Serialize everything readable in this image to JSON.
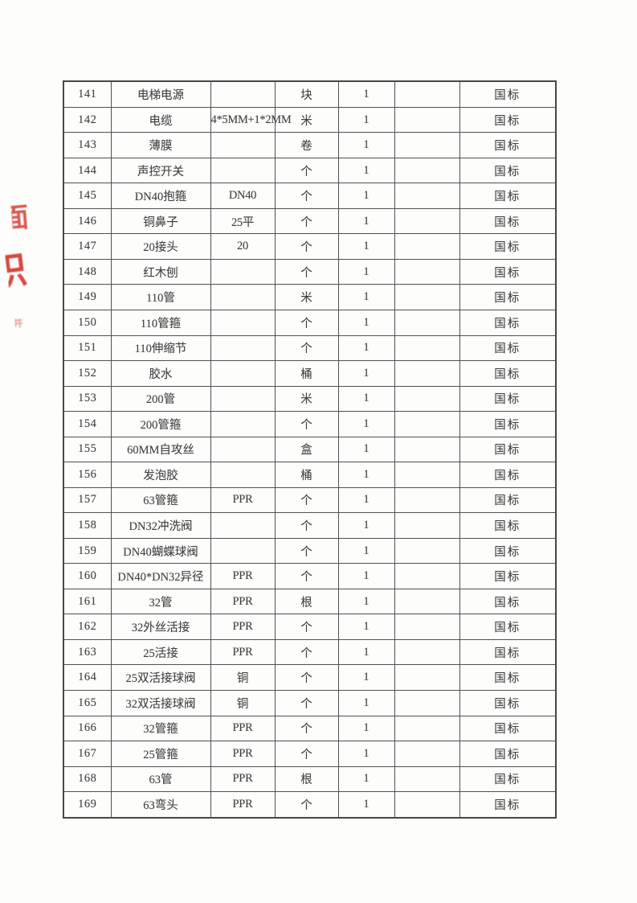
{
  "stamp": {
    "color": "#cf2b20",
    "fragments": [
      {
        "glyph": "面"
      },
      {
        "glyph": "职"
      },
      {
        "glyph": "并"
      }
    ]
  },
  "table": {
    "rows": [
      [
        "141",
        "电梯电源",
        "",
        "块",
        "1",
        "",
        "国标"
      ],
      [
        "142",
        "电缆",
        "4*5MM+1*2MM",
        "米",
        "1",
        "",
        "国标"
      ],
      [
        "143",
        "薄膜",
        "",
        "卷",
        "1",
        "",
        "国标"
      ],
      [
        "144",
        "声控开关",
        "",
        "个",
        "1",
        "",
        "国标"
      ],
      [
        "145",
        "DN40抱箍",
        "DN40",
        "个",
        "1",
        "",
        "国标"
      ],
      [
        "146",
        "铜鼻子",
        "25平",
        "个",
        "1",
        "",
        "国标"
      ],
      [
        "147",
        "20接头",
        "20",
        "个",
        "1",
        "",
        "国标"
      ],
      [
        "148",
        "红木刨",
        "",
        "个",
        "1",
        "",
        "国标"
      ],
      [
        "149",
        "110管",
        "",
        "米",
        "1",
        "",
        "国标"
      ],
      [
        "150",
        "110管箍",
        "",
        "个",
        "1",
        "",
        "国标"
      ],
      [
        "151",
        "110伸缩节",
        "",
        "个",
        "1",
        "",
        "国标"
      ],
      [
        "152",
        "胶水",
        "",
        "桶",
        "1",
        "",
        "国标"
      ],
      [
        "153",
        "200管",
        "",
        "米",
        "1",
        "",
        "国标"
      ],
      [
        "154",
        "200管箍",
        "",
        "个",
        "1",
        "",
        "国标"
      ],
      [
        "155",
        "60MM自攻丝",
        "",
        "盒",
        "1",
        "",
        "国标"
      ],
      [
        "156",
        "发泡胶",
        "",
        "桶",
        "1",
        "",
        "国标"
      ],
      [
        "157",
        "63管箍",
        "PPR",
        "个",
        "1",
        "",
        "国标"
      ],
      [
        "158",
        "DN32冲洗阀",
        "",
        "个",
        "1",
        "",
        "国标"
      ],
      [
        "159",
        "DN40蝴蝶球阀",
        "",
        "个",
        "1",
        "",
        "国标"
      ],
      [
        "160",
        "DN40*DN32异径",
        "PPR",
        "个",
        "1",
        "",
        "国标"
      ],
      [
        "161",
        "32管",
        "PPR",
        "根",
        "1",
        "",
        "国标"
      ],
      [
        "162",
        "32外丝活接",
        "PPR",
        "个",
        "1",
        "",
        "国标"
      ],
      [
        "163",
        "25活接",
        "PPR",
        "个",
        "1",
        "",
        "国标"
      ],
      [
        "164",
        "25双活接球阀",
        "铜",
        "个",
        "1",
        "",
        "国标"
      ],
      [
        "165",
        "32双活接球阀",
        "铜",
        "个",
        "1",
        "",
        "国标"
      ],
      [
        "166",
        "32管箍",
        "PPR",
        "个",
        "1",
        "",
        "国标"
      ],
      [
        "167",
        "25管箍",
        "PPR",
        "个",
        "1",
        "",
        "国标"
      ],
      [
        "168",
        "63管",
        "PPR",
        "根",
        "1",
        "",
        "国标"
      ],
      [
        "169",
        "63弯头",
        "PPR",
        "个",
        "1",
        "",
        "国标"
      ]
    ]
  }
}
